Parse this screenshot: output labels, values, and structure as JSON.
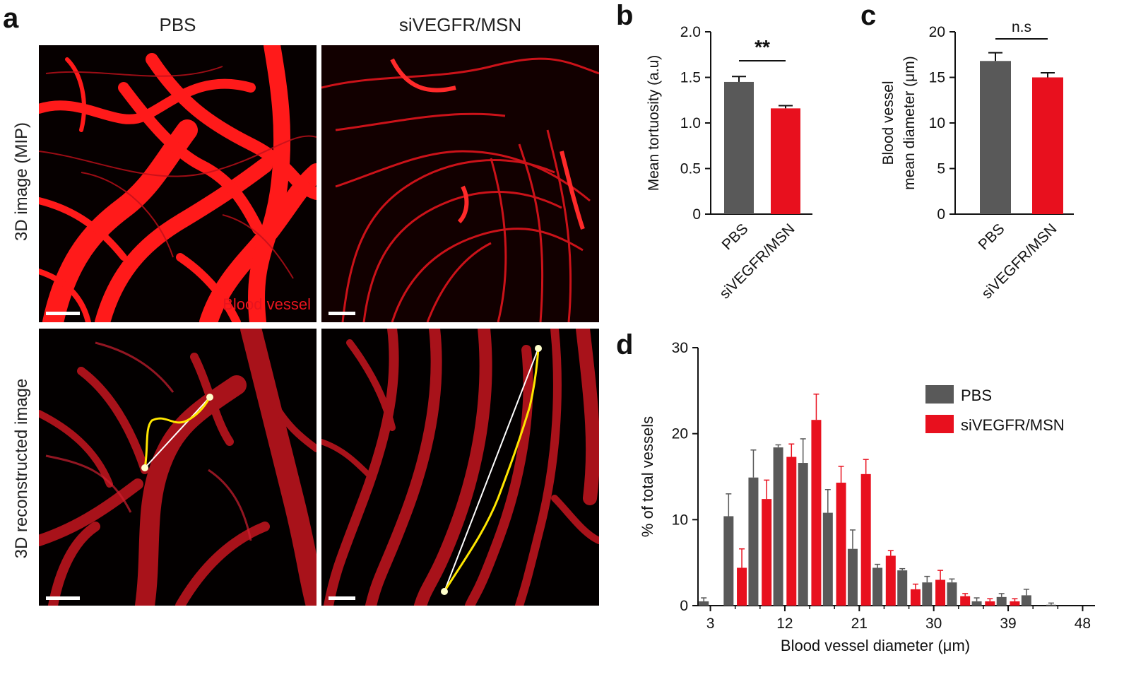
{
  "panel_letters": {
    "a": "a",
    "b": "b",
    "c": "c",
    "d": "d"
  },
  "panel_a": {
    "col_titles": [
      "PBS",
      "siVEGFR/MSN"
    ],
    "row_titles": [
      "3D image (MIP)",
      "3D reconstructed image"
    ],
    "tile_caption": "Blood vessel",
    "colors": {
      "vessel_bright": "#ff1a1a",
      "vessel_render": "#b0121c",
      "background": "#050000",
      "path": "#ffe600",
      "chord": "#ffffff"
    }
  },
  "chart_data": [
    {
      "id": "b",
      "type": "bar",
      "categories": [
        "PBS",
        "siVEGFR/MSN"
      ],
      "values": [
        1.45,
        1.16
      ],
      "errors": [
        0.06,
        0.03
      ],
      "colors": [
        "#595959",
        "#e8101e"
      ],
      "ylabel": "Mean tortuosity (a.u)",
      "ylim": [
        0,
        2.0
      ],
      "yticks": [
        "0",
        "0.5",
        "1.0",
        "1.5",
        "2.0"
      ],
      "significance": "**"
    },
    {
      "id": "c",
      "type": "bar",
      "categories": [
        "PBS",
        "siVEGFR/MSN"
      ],
      "values": [
        16.8,
        15.0
      ],
      "errors": [
        0.9,
        0.5
      ],
      "colors": [
        "#595959",
        "#e8101e"
      ],
      "ylabel": [
        "Blood vessel",
        "mean diameter (μm)"
      ],
      "ylim": [
        0,
        20
      ],
      "yticks": [
        "0",
        "5",
        "10",
        "15",
        "20"
      ],
      "significance": "n.s"
    },
    {
      "id": "d",
      "type": "bar",
      "xlabel": "Blood vessel diameter (μm)",
      "ylabel": "% of total vessels",
      "xlim": [
        1.5,
        49.5
      ],
      "ylim": [
        0,
        30
      ],
      "xticks": [
        "3",
        "12",
        "21",
        "30",
        "39",
        "48"
      ],
      "yticks": [
        "0",
        "10",
        "20",
        "30"
      ],
      "legend_position": "top-right",
      "series": [
        {
          "name": "PBS",
          "color": "#595959",
          "x": [
            2.2,
            5.2,
            8.2,
            11.2,
            14.2,
            17.2,
            20.2,
            23.2,
            26.2,
            29.2,
            32.2,
            35.2,
            38.2,
            41.2,
            44.2
          ],
          "values": [
            0.5,
            10.4,
            14.9,
            18.4,
            16.6,
            10.8,
            6.6,
            4.4,
            4.1,
            2.7,
            2.7,
            0.5,
            1.0,
            1.2,
            0.1
          ],
          "errors": [
            0.4,
            2.6,
            3.2,
            0.3,
            2.8,
            2.7,
            2.2,
            0.4,
            0.2,
            0.7,
            0.4,
            0.4,
            0.4,
            0.7,
            0.2
          ]
        },
        {
          "name": "siVEGFR/MSN",
          "color": "#e8101e",
          "x": [
            6.8,
            9.8,
            12.8,
            15.8,
            18.8,
            21.8,
            24.8,
            27.8,
            30.8,
            33.8,
            36.8,
            39.8
          ],
          "values": [
            4.4,
            12.4,
            17.3,
            21.6,
            14.3,
            15.3,
            5.8,
            1.9,
            3.0,
            1.1,
            0.5,
            0.5
          ],
          "errors": [
            2.2,
            2.2,
            1.5,
            3.0,
            1.9,
            1.7,
            0.6,
            0.6,
            1.1,
            0.3,
            0.3,
            0.3
          ]
        }
      ]
    }
  ]
}
